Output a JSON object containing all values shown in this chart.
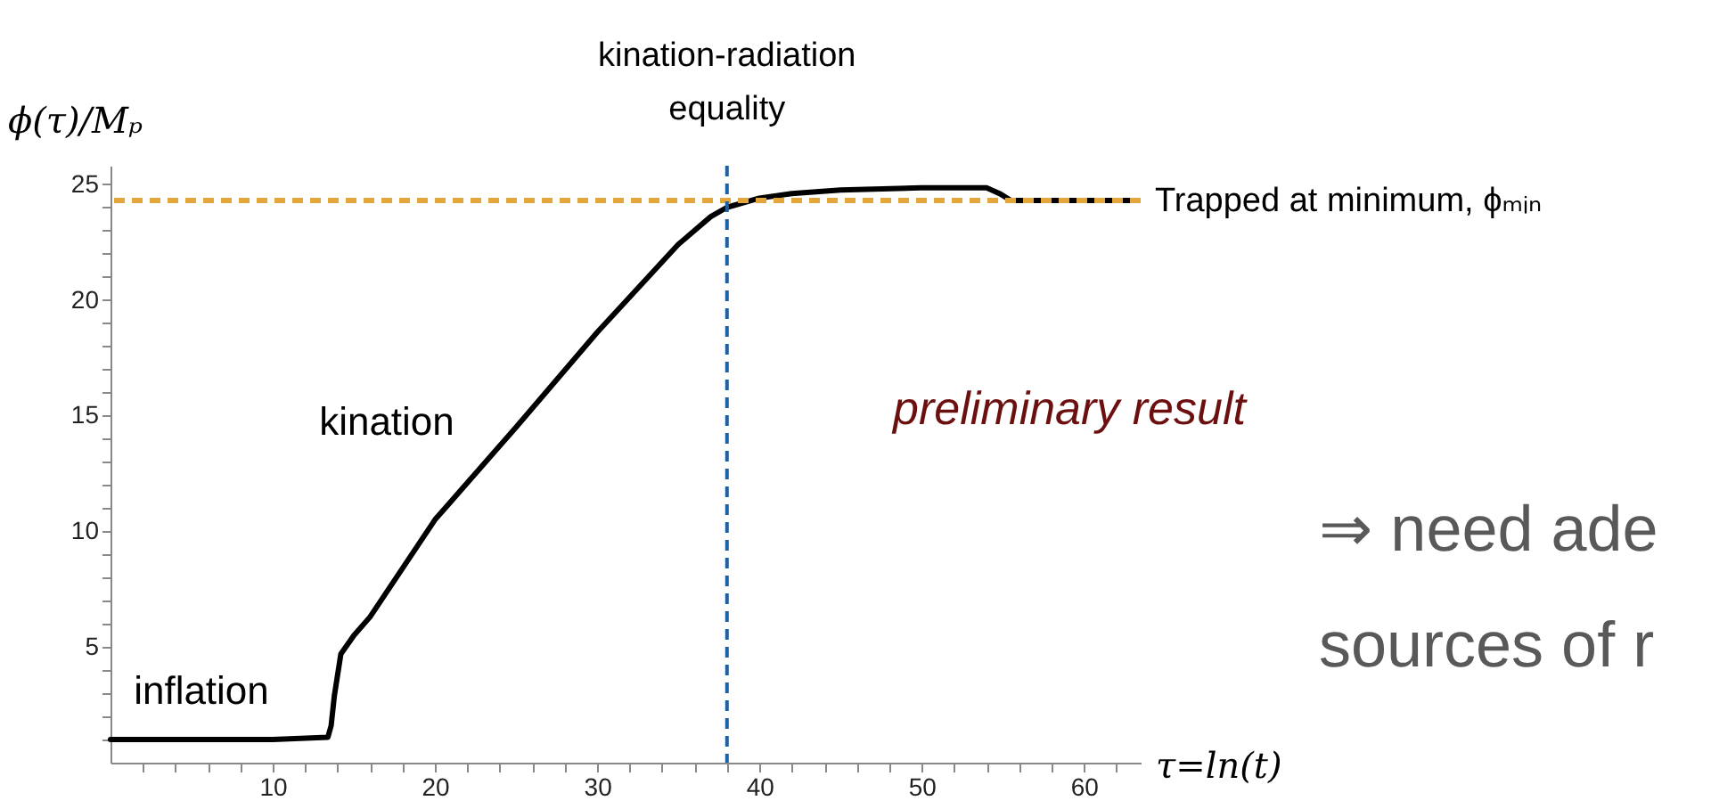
{
  "chart_data": {
    "type": "line",
    "xlabel": "τ=ln(t)",
    "ylabel": "ϕ(τ)/Mₚ",
    "x": [
      0,
      5,
      10,
      13.4,
      13.6,
      13.8,
      14.2,
      15,
      16,
      20,
      25,
      30,
      35,
      37,
      38,
      40,
      42,
      45,
      50,
      54,
      54.8,
      55.5,
      57,
      63
    ],
    "series": [
      {
        "color": "#000000",
        "values": [
          1.0,
          1.0,
          1.0,
          1.1,
          1.6,
          2.9,
          4.7,
          5.5,
          6.3,
          10.5,
          14.5,
          18.6,
          22.4,
          23.6,
          24.0,
          24.4,
          24.6,
          24.75,
          24.85,
          24.85,
          24.6,
          24.3,
          24.3,
          24.3
        ]
      }
    ],
    "xlim": [
      0,
      63.5
    ],
    "ylim": [
      0,
      25.8
    ],
    "xticks": [
      {
        "value": 2,
        "label": null
      },
      {
        "value": 4,
        "label": null
      },
      {
        "value": 6,
        "label": null
      },
      {
        "value": 8,
        "label": null
      },
      10,
      {
        "value": 12,
        "label": null
      },
      {
        "value": 14,
        "label": null
      },
      {
        "value": 16,
        "label": null
      },
      {
        "value": 18,
        "label": null
      },
      20,
      {
        "value": 22,
        "label": null
      },
      {
        "value": 24,
        "label": null
      },
      {
        "value": 26,
        "label": null
      },
      {
        "value": 28,
        "label": null
      },
      30,
      {
        "value": 32,
        "label": null
      },
      {
        "value": 34,
        "label": null
      },
      {
        "value": 36,
        "label": null
      },
      {
        "value": 38,
        "label": null
      },
      40,
      {
        "value": 42,
        "label": null
      },
      {
        "value": 44,
        "label": null
      },
      {
        "value": 46,
        "label": null
      },
      {
        "value": 48,
        "label": null
      },
      50,
      {
        "value": 52,
        "label": null
      },
      {
        "value": 54,
        "label": null
      },
      {
        "value": 56,
        "label": null
      },
      {
        "value": 58,
        "label": null
      },
      60,
      {
        "value": 62,
        "label": null
      }
    ],
    "yticks": [
      {
        "value": 1,
        "label": null
      },
      {
        "value": 2,
        "label": null
      },
      {
        "value": 3,
        "label": null
      },
      {
        "value": 4,
        "label": null
      },
      5,
      {
        "value": 6,
        "label": null
      },
      {
        "value": 7,
        "label": null
      },
      {
        "value": 8,
        "label": null
      },
      {
        "value": 9,
        "label": null
      },
      10,
      {
        "value": 11,
        "label": null
      },
      {
        "value": 12,
        "label": null
      },
      {
        "value": 13,
        "label": null
      },
      {
        "value": 14,
        "label": null
      },
      15,
      {
        "value": 16,
        "label": null
      },
      {
        "value": 17,
        "label": null
      },
      {
        "value": 18,
        "label": null
      },
      {
        "value": 19,
        "label": null
      },
      20,
      {
        "value": 21,
        "label": null
      },
      {
        "value": 22,
        "label": null
      },
      {
        "value": 23,
        "label": null
      },
      {
        "value": 24,
        "label": null
      },
      25
    ],
    "ref_lines": [
      {
        "axis": "y",
        "value": 24.3,
        "label": "Trapped at minimum, ϕₘᵢₙ",
        "color": "#e3a63a",
        "line_style": "dashed"
      },
      {
        "axis": "x",
        "value": 38,
        "label": "kination-radiation equality",
        "color": "#1f5fa8",
        "line_style": "dashed"
      }
    ],
    "annotations": [
      "inflation",
      "kination",
      "preliminary result",
      "⇒ need ade",
      "sources of r"
    ],
    "grid": false,
    "marker": "none",
    "line_style": "solid"
  }
}
